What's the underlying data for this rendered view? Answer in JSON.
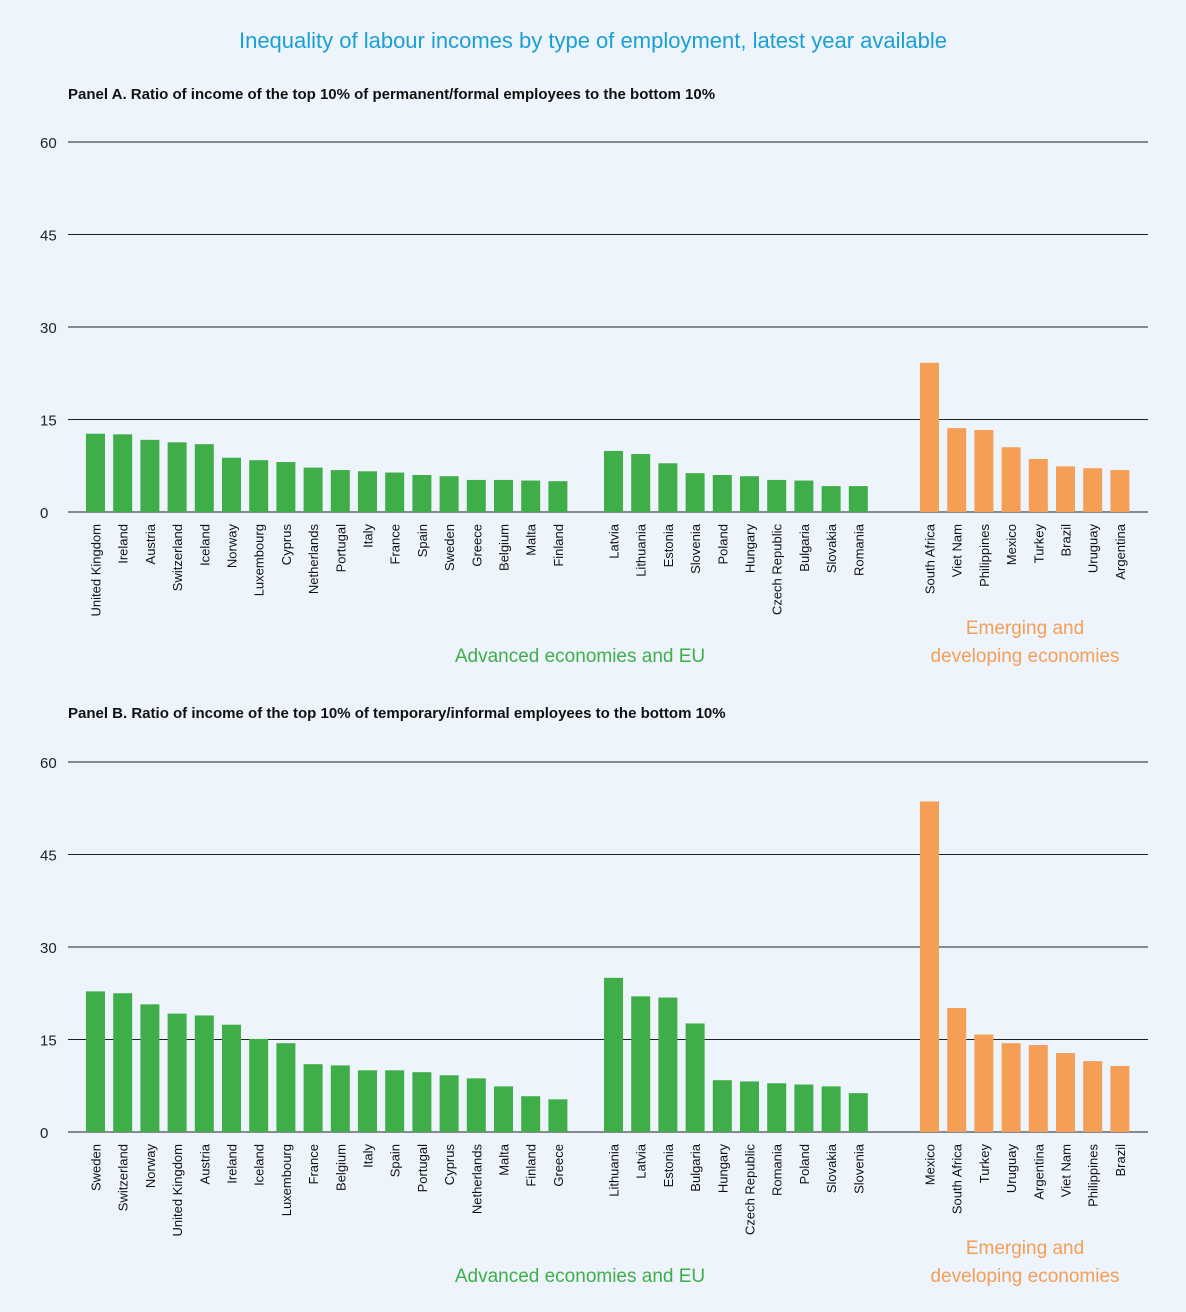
{
  "title": "Inequality of labour incomes by type of employment, latest year available",
  "colors": {
    "advanced": "#3fae49",
    "emerging": "#f59e55",
    "title": "#1a9fd6",
    "grid": "#222222"
  },
  "chart_data": [
    {
      "type": "bar",
      "title": "Panel A.  Ratio of income of the top 10% of permanent/formal employees to the bottom 10%",
      "ylim": [
        0,
        60
      ],
      "yticks": [
        "0",
        "15",
        "30",
        "45",
        "60"
      ],
      "grid": true,
      "groups": [
        {
          "label": "Advanced economies and EU",
          "color": "#3fae49",
          "categories": [
            "United Kingdom",
            "Ireland",
            "Austria",
            "Switzerland",
            "Iceland",
            "Norway",
            "Luxembourg",
            "Cyprus",
            "Netherlands",
            "Portugal",
            "Italy",
            "France",
            "Spain",
            "Sweden",
            "Greece",
            "Belgium",
            "Malta",
            "Finland"
          ],
          "values": [
            12.7,
            12.6,
            11.7,
            11.3,
            11.0,
            8.8,
            8.4,
            8.1,
            7.2,
            6.8,
            6.6,
            6.4,
            6.0,
            5.8,
            5.2,
            5.2,
            5.1,
            5.0
          ]
        },
        {
          "label": "",
          "color": "#3fae49",
          "categories": [
            "Latvia",
            "Lithuania",
            "Estonia",
            "Slovenia",
            "Poland",
            "Hungary",
            "Czech Republic",
            "Bulgaria",
            "Slovakia",
            "Romania"
          ],
          "values": [
            9.9,
            9.4,
            7.9,
            6.3,
            6.0,
            5.8,
            5.2,
            5.1,
            4.2,
            4.2
          ]
        },
        {
          "label": "Emerging and developing economies",
          "color": "#f59e55",
          "categories": [
            "South Africa",
            "Viet Nam",
            "Philippines",
            "Mexico",
            "Turkey",
            "Brazil",
            "Uruguay",
            "Argentina"
          ],
          "values": [
            24.2,
            13.6,
            13.3,
            10.5,
            8.6,
            7.4,
            7.1,
            6.8
          ]
        }
      ]
    },
    {
      "type": "bar",
      "title": "Panel B.  Ratio of income of the top 10% of temporary/informal employees to the bottom 10%",
      "ylim": [
        0,
        60
      ],
      "yticks": [
        "0",
        "15",
        "30",
        "45",
        "60"
      ],
      "grid": true,
      "groups": [
        {
          "label": "Advanced economies and EU",
          "color": "#3fae49",
          "categories": [
            "Sweden",
            "Switzerland",
            "Norway",
            "United Kingdom",
            "Austria",
            "Ireland",
            "Iceland",
            "Luxembourg",
            "France",
            "Belgium",
            "Italy",
            "Spain",
            "Portugal",
            "Cyprus",
            "Netherlands",
            "Malta",
            "Finland",
            "Greece"
          ],
          "values": [
            22.8,
            22.5,
            20.7,
            19.2,
            18.9,
            17.4,
            15.1,
            14.4,
            11.0,
            10.8,
            10.0,
            10.0,
            9.7,
            9.2,
            8.7,
            7.4,
            5.8,
            5.3
          ]
        },
        {
          "label": "",
          "color": "#3fae49",
          "categories": [
            "Lithuania",
            "Latvia",
            "Estonia",
            "Bulgaria",
            "Hungary",
            "Czech Republic",
            "Romania",
            "Poland",
            "Slovakia",
            "Slovenia"
          ],
          "values": [
            25.0,
            22.0,
            21.8,
            17.6,
            8.4,
            8.2,
            7.9,
            7.7,
            7.4,
            6.3
          ]
        },
        {
          "label": "Emerging and developing economies",
          "color": "#f59e55",
          "categories": [
            "Mexico",
            "South Africa",
            "Turkey",
            "Uruguay",
            "Argentina",
            "Viet Nam",
            "Philippines",
            "Brazil"
          ],
          "values": [
            53.6,
            20.1,
            15.8,
            14.4,
            14.1,
            12.8,
            11.5,
            10.7
          ]
        }
      ]
    }
  ]
}
